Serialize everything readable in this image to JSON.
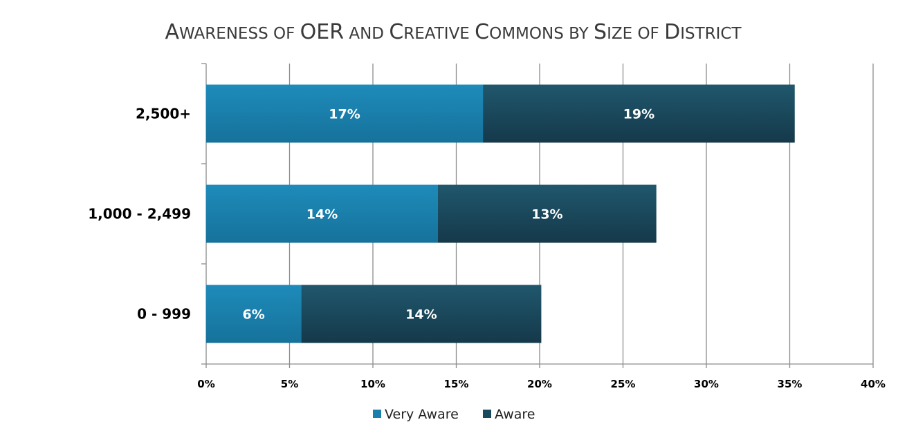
{
  "chart_data": {
    "type": "bar",
    "orientation": "horizontal",
    "stacked": true,
    "title_parts": [
      {
        "text": "A",
        "size": "big"
      },
      {
        "text": "WARENESS OF ",
        "size": "small"
      },
      {
        "text": "OER",
        "size": "big"
      },
      {
        "text": " AND ",
        "size": "small"
      },
      {
        "text": "C",
        "size": "big"
      },
      {
        "text": "REATIVE ",
        "size": "small"
      },
      {
        "text": "C",
        "size": "big"
      },
      {
        "text": "OMMONS BY ",
        "size": "small"
      },
      {
        "text": "S",
        "size": "big"
      },
      {
        "text": "IZE OF ",
        "size": "small"
      },
      {
        "text": "D",
        "size": "big"
      },
      {
        "text": "ISTRICT",
        "size": "small"
      }
    ],
    "categories": [
      "2,500+",
      "1,000 - 2,499",
      "0 - 999"
    ],
    "series": [
      {
        "name": "Very Aware",
        "values": [
          16.6,
          13.9,
          5.7
        ],
        "labels": [
          "17%",
          "14%",
          "6%"
        ],
        "color": "#1a80ab"
      },
      {
        "name": "Aware",
        "values": [
          18.7,
          13.1,
          14.4
        ],
        "labels": [
          "19%",
          "13%",
          "14%"
        ],
        "color": "#1b4a5e"
      }
    ],
    "xlim": [
      0,
      40
    ],
    "xticks": [
      "0%",
      "5%",
      "10%",
      "15%",
      "20%",
      "25%",
      "30%",
      "35%",
      "40%"
    ],
    "grid": true,
    "legend_position": "bottom"
  }
}
